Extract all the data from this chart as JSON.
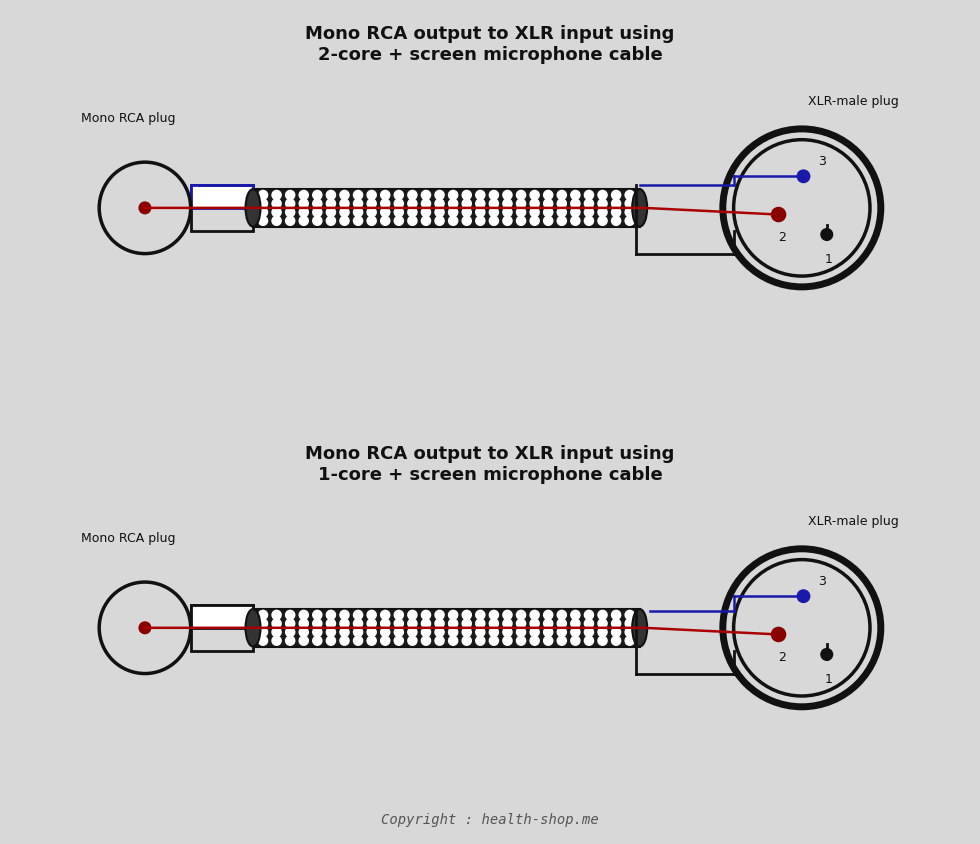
{
  "bg_color": "#d8d8d8",
  "title1": "Mono RCA output to XLR input using\n2-core + screen microphone cable",
  "title2": "Mono RCA output to XLR input using\n1-core + screen microphone cable",
  "label_rca": "Mono RCA plug",
  "label_xlr": "XLR-male plug",
  "copyright": "Copyright : health-shop.me",
  "text_color": "#111111",
  "wire_red": "#aa0000",
  "wire_blue": "#1a1aaa",
  "wire_black": "#111111",
  "pin_dot_red": "#880000",
  "pin_dot_blue": "#1a1aaa",
  "pin_dot_black": "#111111"
}
